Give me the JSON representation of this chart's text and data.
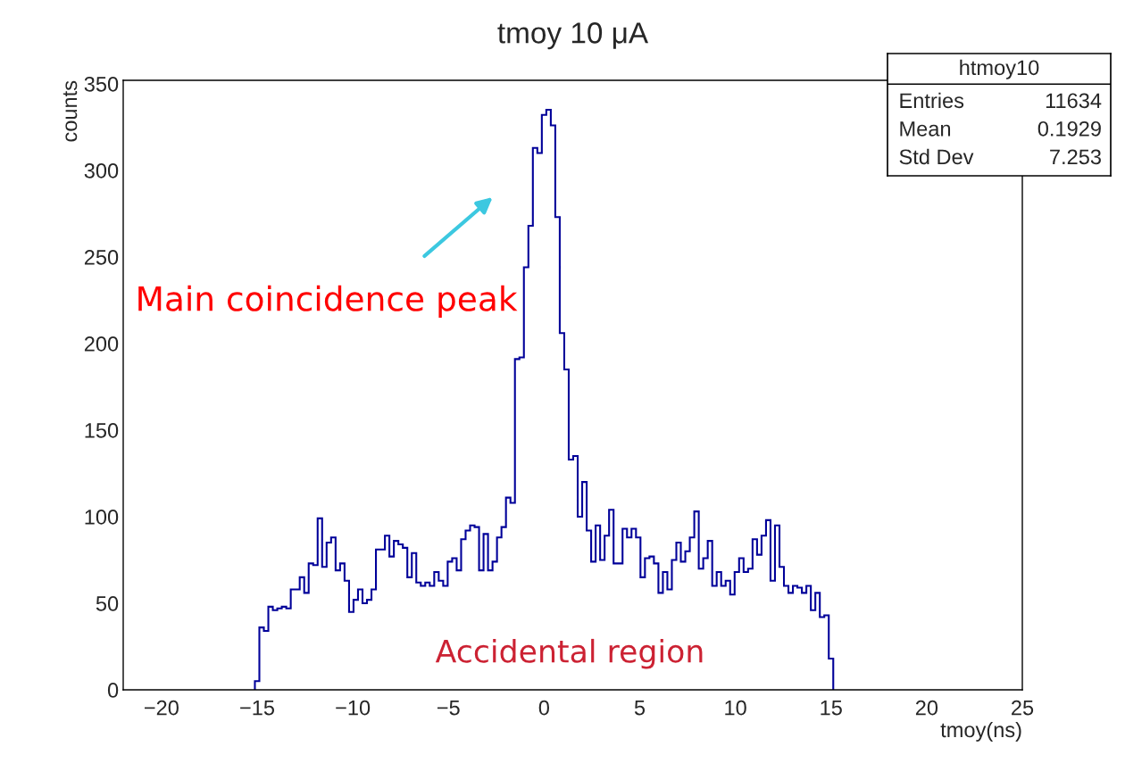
{
  "chart_data": {
    "type": "histogram",
    "title": "tmoy 10 μA",
    "xlabel": "tmoy(ns)",
    "ylabel": "counts",
    "bins": [
      -15.117,
      -14.883,
      -14.648,
      -14.414,
      -14.18,
      -13.945,
      -13.711,
      -13.477,
      -13.242,
      -13.008,
      -12.773,
      -12.539,
      -12.305,
      -12.07,
      -11.836,
      -11.602,
      -11.367,
      -11.133,
      -10.898,
      -10.664,
      -10.43,
      -10.195,
      -9.961,
      -9.727,
      -9.492,
      -9.258,
      -9.023,
      -8.789,
      -8.555,
      -8.32,
      -8.086,
      -7.852,
      -7.617,
      -7.383,
      -7.148,
      -6.914,
      -6.68,
      -6.445,
      -6.211,
      -5.977,
      -5.742,
      -5.508,
      -5.273,
      -5.039,
      -4.805,
      -4.57,
      -4.336,
      -4.102,
      -3.867,
      -3.633,
      -3.398,
      -3.164,
      -2.93,
      -2.695,
      -2.461,
      -2.227,
      -1.992,
      -1.758,
      -1.523,
      -1.289,
      -1.055,
      -0.82,
      -0.586,
      -0.352,
      -0.117,
      0.117,
      0.352,
      0.586,
      0.82,
      1.055,
      1.289,
      1.523,
      1.758,
      1.992,
      2.227,
      2.461,
      2.695,
      2.93,
      3.164,
      3.398,
      3.633,
      3.867,
      4.102,
      4.336,
      4.57,
      4.805,
      5.039,
      5.273,
      5.508,
      5.742,
      5.977,
      6.211,
      6.445,
      6.68,
      6.914,
      7.148,
      7.383,
      7.617,
      7.852,
      8.086,
      8.32,
      8.555,
      8.789,
      9.023,
      9.258,
      9.492,
      9.727,
      9.961,
      10.195,
      10.43,
      10.664,
      10.898,
      11.133,
      11.367,
      11.602,
      11.836,
      12.07,
      12.305,
      12.539,
      12.773,
      13.008,
      13.242,
      13.477,
      13.711,
      13.945,
      14.18,
      14.414,
      14.648,
      14.883,
      15.117
    ],
    "values": [
      5,
      36,
      34,
      48,
      46,
      47,
      48,
      47,
      58,
      58,
      65,
      56,
      73,
      72,
      99,
      71,
      85,
      88,
      69,
      73,
      63,
      45,
      52,
      58,
      50,
      52,
      58,
      81,
      81,
      89,
      77,
      86,
      84,
      82,
      65,
      79,
      62,
      60,
      62,
      60,
      68,
      63,
      60,
      74,
      76,
      69,
      87,
      92,
      95,
      94,
      69,
      90,
      69,
      74,
      88,
      94,
      111,
      108,
      191,
      192,
      244,
      268,
      313,
      310,
      332,
      335,
      326,
      273,
      206,
      185,
      133,
      135,
      100,
      120,
      92,
      74,
      95,
      75,
      89,
      104,
      73,
      73,
      93,
      88,
      93,
      88,
      65,
      76,
      77,
      73,
      56,
      68,
      58,
      75,
      85,
      74,
      80,
      88,
      103,
      70,
      76,
      86,
      60,
      68,
      60,
      63,
      55,
      68,
      76,
      68,
      70,
      87,
      78,
      89,
      98,
      63,
      95,
      71,
      60,
      56,
      60,
      59,
      56,
      60,
      46,
      56,
      42,
      43,
      18
    ],
    "color": "#000099",
    "xlim": [
      -22,
      25
    ],
    "xticks": [
      {
        "value": -20,
        "label": "−20"
      },
      {
        "value": -15,
        "label": "−15"
      },
      {
        "value": -10,
        "label": "−10"
      },
      {
        "value": -5,
        "label": "−5"
      },
      0,
      5,
      10,
      15,
      20,
      25
    ],
    "ylim": [
      0,
      352
    ],
    "yticks": [
      0,
      50,
      100,
      150,
      200,
      250,
      300,
      350
    ],
    "annotations": [
      "Main coincidence peak",
      "Accidental region",
      "htmoy10",
      "Entries",
      "11634",
      "Mean",
      "0.1929",
      "Std Dev",
      "7.253"
    ]
  }
}
